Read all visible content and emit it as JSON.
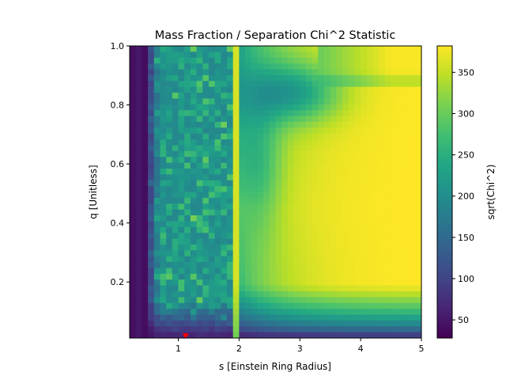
{
  "chart_data": {
    "type": "heatmap",
    "title": "Mass Fraction / Separation Chi^2 Statistic",
    "xlabel": "s [Einstein Ring Radius]",
    "ylabel": "q [Unitless]",
    "colorbar_label": "sqrt(Chi^2)",
    "colormap": "viridis",
    "xlim": [
      0.2,
      5.0
    ],
    "ylim": [
      0.01,
      1.0
    ],
    "x_ticks": [
      1,
      2,
      3,
      4,
      5
    ],
    "y_ticks": [
      0.2,
      0.4,
      0.6,
      0.8,
      1.0
    ],
    "x_tick_labels": [
      "1",
      "2",
      "3",
      "4",
      "5"
    ],
    "y_tick_labels": [
      "0.2",
      "0.4",
      "0.6",
      "0.8",
      "1.0"
    ],
    "clim": [
      28,
      382
    ],
    "colorbar_ticks": [
      50,
      100,
      150,
      200,
      250,
      300,
      350
    ],
    "colorbar_tick_labels": [
      "50",
      "100",
      "150",
      "200",
      "250",
      "300",
      "350"
    ],
    "grid_size": [
      48,
      50
    ],
    "best_fit_marker": {
      "s": 1.12,
      "q": 0.015,
      "color": "#ff0000",
      "shape": "triangle-down"
    },
    "grid": false
  }
}
